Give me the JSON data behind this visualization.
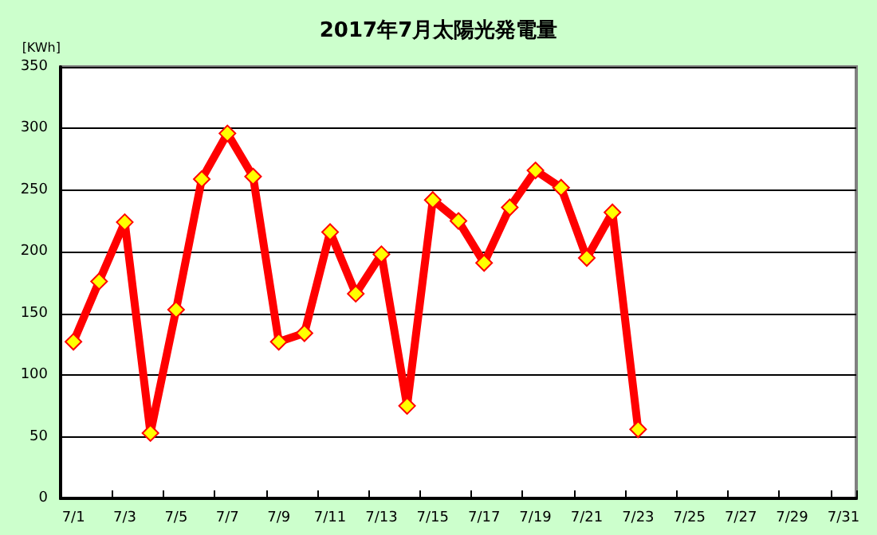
{
  "chart_data": {
    "type": "line",
    "title": "2017年7月太陽光発電量",
    "ylabel": "[KWh]",
    "categories": [
      "7/1",
      null,
      "7/3",
      null,
      "7/5",
      null,
      "7/7",
      null,
      "7/9",
      null,
      "7/11",
      null,
      "7/13",
      null,
      "7/15",
      null,
      "7/17",
      null,
      "7/19",
      null,
      "7/21",
      null,
      "7/23",
      null,
      "7/25",
      null,
      "7/27",
      null,
      "7/29",
      null,
      "7/31"
    ],
    "series": [
      {
        "color": "#ff0000",
        "values": [
          127,
          176,
          224,
          53,
          153,
          259,
          296,
          261,
          127,
          134,
          216,
          166,
          198,
          75,
          242,
          225,
          191,
          236,
          266,
          252,
          195,
          232,
          56,
          null,
          null,
          null,
          null,
          null,
          null,
          null,
          null
        ]
      }
    ],
    "ylim": [
      0,
      350
    ],
    "yticks": [
      0,
      50,
      100,
      150,
      200,
      250,
      300,
      350
    ],
    "grid": "y",
    "marker": "diamond",
    "line_style": "solid"
  }
}
